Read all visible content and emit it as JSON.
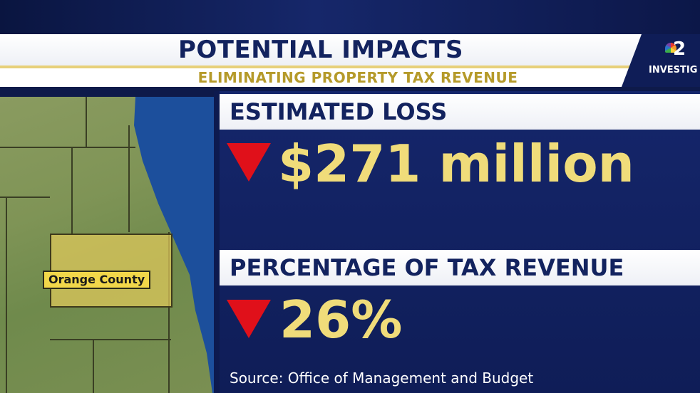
{
  "header": {
    "title": "POTENTIAL IMPACTS",
    "subtitle": "ELIMINATING PROPERTY TAX REVENUE"
  },
  "logo": {
    "channel": "2",
    "label": "INVESTIG"
  },
  "map": {
    "county_label": "Orange County"
  },
  "sections": {
    "loss": {
      "heading": "ESTIMATED LOSS",
      "value": "$271 million"
    },
    "percentage": {
      "heading": "PERCENTAGE OF TAX REVENUE",
      "value": "26%"
    }
  },
  "source": "Source: Office of Management and Budget",
  "colors": {
    "navy": "#13235f",
    "gold_text": "#f0dc7a",
    "down_arrow": "#e0101a",
    "subtitle_gold": "#b59a2a"
  },
  "icons": [
    "down-arrow-icon",
    "peacock-logo-icon"
  ]
}
